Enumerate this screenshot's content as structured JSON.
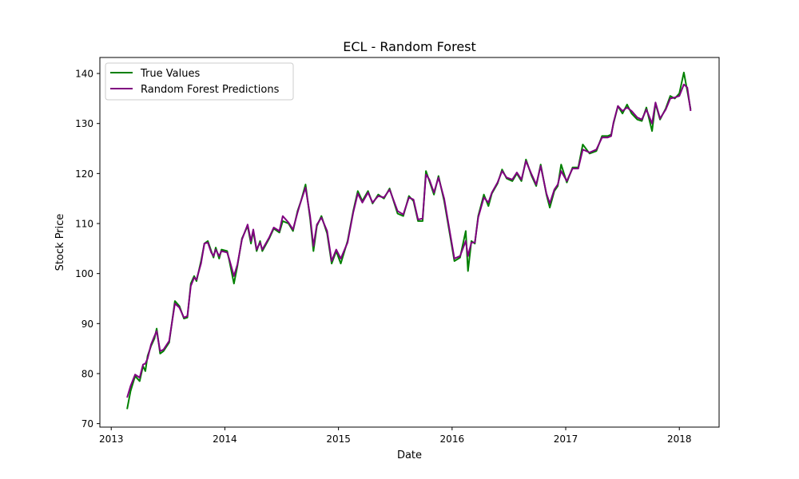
{
  "chart_data": {
    "type": "line",
    "title": "ECL - Random Forest",
    "xlabel": "Date",
    "ylabel": "Stock Price",
    "xlim": [
      2012.9,
      2018.35
    ],
    "ylim": [
      69.3,
      143.2
    ],
    "x_ticks": [
      2013,
      2014,
      2015,
      2016,
      2017,
      2018
    ],
    "x_tick_labels": [
      "2013",
      "2014",
      "2015",
      "2016",
      "2017",
      "2018"
    ],
    "y_ticks": [
      70,
      80,
      90,
      100,
      110,
      120,
      130,
      140
    ],
    "y_tick_labels": [
      "70",
      "80",
      "90",
      "100",
      "110",
      "120",
      "130",
      "140"
    ],
    "grid": false,
    "legend_position": "top-left",
    "series": [
      {
        "name": "True Values",
        "color": "#008000",
        "points": [
          [
            2013.14,
            72.9
          ],
          [
            2013.17,
            76.5
          ],
          [
            2013.21,
            79.5
          ],
          [
            2013.25,
            78.5
          ],
          [
            2013.28,
            81.5
          ],
          [
            2013.3,
            80.5
          ],
          [
            2013.32,
            83.5
          ],
          [
            2013.35,
            85.5
          ],
          [
            2013.38,
            87.0
          ],
          [
            2013.4,
            89.0
          ],
          [
            2013.43,
            84.0
          ],
          [
            2013.46,
            84.5
          ],
          [
            2013.51,
            86.2
          ],
          [
            2013.56,
            94.5
          ],
          [
            2013.6,
            93.5
          ],
          [
            2013.64,
            91.0
          ],
          [
            2013.67,
            91.2
          ],
          [
            2013.7,
            98.0
          ],
          [
            2013.73,
            99.5
          ],
          [
            2013.75,
            98.5
          ],
          [
            2013.79,
            102.5
          ],
          [
            2013.82,
            106.0
          ],
          [
            2013.85,
            106.5
          ],
          [
            2013.88,
            104.5
          ],
          [
            2013.9,
            103.2
          ],
          [
            2013.92,
            105.2
          ],
          [
            2013.95,
            103.0
          ],
          [
            2013.97,
            104.8
          ],
          [
            2014.02,
            104.5
          ],
          [
            2014.04,
            102.5
          ],
          [
            2014.08,
            98.0
          ],
          [
            2014.11,
            101.5
          ],
          [
            2014.15,
            107.0
          ],
          [
            2014.2,
            109.5
          ],
          [
            2014.23,
            106.0
          ],
          [
            2014.25,
            108.5
          ],
          [
            2014.28,
            104.5
          ],
          [
            2014.31,
            106.5
          ],
          [
            2014.33,
            104.5
          ],
          [
            2014.39,
            107.0
          ],
          [
            2014.43,
            109.0
          ],
          [
            2014.48,
            108.2
          ],
          [
            2014.51,
            110.5
          ],
          [
            2014.56,
            110.0
          ],
          [
            2014.6,
            108.5
          ],
          [
            2014.64,
            112.5
          ],
          [
            2014.67,
            114.5
          ],
          [
            2014.71,
            117.8
          ],
          [
            2014.75,
            111.0
          ],
          [
            2014.78,
            104.5
          ],
          [
            2014.81,
            109.5
          ],
          [
            2014.85,
            111.5
          ],
          [
            2014.9,
            108.0
          ],
          [
            2014.94,
            102.0
          ],
          [
            2014.98,
            104.5
          ],
          [
            2015.02,
            102.0
          ],
          [
            2015.08,
            106.5
          ],
          [
            2015.13,
            112.5
          ],
          [
            2015.17,
            116.5
          ],
          [
            2015.21,
            114.5
          ],
          [
            2015.26,
            116.5
          ],
          [
            2015.3,
            114.0
          ],
          [
            2015.35,
            115.8
          ],
          [
            2015.4,
            115.0
          ],
          [
            2015.45,
            117.0
          ],
          [
            2015.52,
            112.0
          ],
          [
            2015.57,
            111.5
          ],
          [
            2015.62,
            115.5
          ],
          [
            2015.66,
            114.5
          ],
          [
            2015.7,
            110.5
          ],
          [
            2015.74,
            110.5
          ],
          [
            2015.77,
            120.5
          ],
          [
            2015.8,
            118.5
          ],
          [
            2015.84,
            115.8
          ],
          [
            2015.88,
            119.5
          ],
          [
            2015.93,
            114.5
          ],
          [
            2016.02,
            102.5
          ],
          [
            2016.07,
            103.2
          ],
          [
            2016.12,
            108.5
          ],
          [
            2016.14,
            100.5
          ],
          [
            2016.17,
            106.5
          ],
          [
            2016.2,
            106.0
          ],
          [
            2016.23,
            111.5
          ],
          [
            2016.28,
            115.8
          ],
          [
            2016.32,
            113.5
          ],
          [
            2016.35,
            116.0
          ],
          [
            2016.4,
            118.0
          ],
          [
            2016.44,
            120.8
          ],
          [
            2016.48,
            119.0
          ],
          [
            2016.53,
            118.5
          ],
          [
            2016.57,
            120.0
          ],
          [
            2016.61,
            118.5
          ],
          [
            2016.65,
            122.8
          ],
          [
            2016.7,
            119.5
          ],
          [
            2016.74,
            117.5
          ],
          [
            2016.78,
            121.8
          ],
          [
            2016.83,
            115.8
          ],
          [
            2016.86,
            113.2
          ],
          [
            2016.9,
            116.5
          ],
          [
            2016.93,
            117.5
          ],
          [
            2016.96,
            121.8
          ],
          [
            2017.01,
            118.2
          ],
          [
            2017.06,
            121.2
          ],
          [
            2017.11,
            121.2
          ],
          [
            2017.15,
            125.8
          ],
          [
            2017.21,
            124.0
          ],
          [
            2017.27,
            124.5
          ],
          [
            2017.32,
            127.5
          ],
          [
            2017.37,
            127.5
          ],
          [
            2017.4,
            127.8
          ],
          [
            2017.42,
            130.0
          ],
          [
            2017.46,
            133.5
          ],
          [
            2017.5,
            132.0
          ],
          [
            2017.54,
            133.8
          ],
          [
            2017.58,
            132.0
          ],
          [
            2017.63,
            130.8
          ],
          [
            2017.67,
            130.5
          ],
          [
            2017.71,
            133.2
          ],
          [
            2017.76,
            128.5
          ],
          [
            2017.79,
            134.0
          ],
          [
            2017.83,
            130.8
          ],
          [
            2017.88,
            133.0
          ],
          [
            2017.92,
            135.5
          ],
          [
            2017.96,
            135.0
          ],
          [
            2018.0,
            136.0
          ],
          [
            2018.04,
            140.2
          ],
          [
            2018.07,
            136.5
          ],
          [
            2018.1,
            132.8
          ]
        ]
      },
      {
        "name": "Random Forest Predictions",
        "color": "#800080",
        "points": [
          [
            2013.14,
            75.2
          ],
          [
            2013.17,
            77.5
          ],
          [
            2013.21,
            79.8
          ],
          [
            2013.25,
            79.2
          ],
          [
            2013.28,
            81.8
          ],
          [
            2013.3,
            82.0
          ],
          [
            2013.32,
            83.0
          ],
          [
            2013.35,
            85.8
          ],
          [
            2013.38,
            87.5
          ],
          [
            2013.4,
            88.5
          ],
          [
            2013.43,
            84.5
          ],
          [
            2013.46,
            84.8
          ],
          [
            2013.51,
            86.5
          ],
          [
            2013.56,
            94.0
          ],
          [
            2013.6,
            93.2
          ],
          [
            2013.64,
            91.2
          ],
          [
            2013.67,
            91.5
          ],
          [
            2013.7,
            97.5
          ],
          [
            2013.73,
            99.2
          ],
          [
            2013.75,
            98.8
          ],
          [
            2013.79,
            102.0
          ],
          [
            2013.82,
            106.0
          ],
          [
            2013.85,
            106.2
          ],
          [
            2013.88,
            104.2
          ],
          [
            2013.9,
            103.5
          ],
          [
            2013.92,
            104.8
          ],
          [
            2013.95,
            103.5
          ],
          [
            2013.97,
            104.5
          ],
          [
            2014.02,
            104.2
          ],
          [
            2014.04,
            102.8
          ],
          [
            2014.08,
            99.5
          ],
          [
            2014.11,
            101.8
          ],
          [
            2014.15,
            106.8
          ],
          [
            2014.2,
            109.8
          ],
          [
            2014.23,
            106.5
          ],
          [
            2014.25,
            108.8
          ],
          [
            2014.28,
            104.8
          ],
          [
            2014.31,
            106.2
          ],
          [
            2014.33,
            104.8
          ],
          [
            2014.39,
            107.2
          ],
          [
            2014.43,
            109.2
          ],
          [
            2014.48,
            108.5
          ],
          [
            2014.51,
            111.5
          ],
          [
            2014.56,
            110.2
          ],
          [
            2014.6,
            108.8
          ],
          [
            2014.64,
            112.2
          ],
          [
            2014.67,
            114.5
          ],
          [
            2014.71,
            117.2
          ],
          [
            2014.75,
            111.5
          ],
          [
            2014.78,
            105.5
          ],
          [
            2014.81,
            109.8
          ],
          [
            2014.85,
            111.2
          ],
          [
            2014.9,
            108.5
          ],
          [
            2014.94,
            102.5
          ],
          [
            2014.98,
            104.8
          ],
          [
            2015.02,
            103.0
          ],
          [
            2015.08,
            106.2
          ],
          [
            2015.13,
            112.2
          ],
          [
            2015.17,
            116.0
          ],
          [
            2015.21,
            114.2
          ],
          [
            2015.26,
            116.2
          ],
          [
            2015.3,
            114.2
          ],
          [
            2015.35,
            115.5
          ],
          [
            2015.4,
            115.2
          ],
          [
            2015.45,
            116.8
          ],
          [
            2015.52,
            112.5
          ],
          [
            2015.57,
            111.8
          ],
          [
            2015.62,
            115.2
          ],
          [
            2015.66,
            114.8
          ],
          [
            2015.7,
            110.8
          ],
          [
            2015.74,
            111.0
          ],
          [
            2015.77,
            119.8
          ],
          [
            2015.8,
            118.8
          ],
          [
            2015.84,
            116.2
          ],
          [
            2015.88,
            119.2
          ],
          [
            2015.93,
            115.0
          ],
          [
            2016.02,
            103.0
          ],
          [
            2016.07,
            103.5
          ],
          [
            2016.12,
            106.5
          ],
          [
            2016.14,
            103.5
          ],
          [
            2016.17,
            106.2
          ],
          [
            2016.2,
            106.2
          ],
          [
            2016.23,
            111.2
          ],
          [
            2016.28,
            115.2
          ],
          [
            2016.32,
            114.2
          ],
          [
            2016.35,
            116.2
          ],
          [
            2016.4,
            118.2
          ],
          [
            2016.44,
            120.5
          ],
          [
            2016.48,
            119.2
          ],
          [
            2016.53,
            118.8
          ],
          [
            2016.57,
            120.2
          ],
          [
            2016.61,
            118.8
          ],
          [
            2016.65,
            122.5
          ],
          [
            2016.7,
            119.8
          ],
          [
            2016.74,
            117.8
          ],
          [
            2016.78,
            121.5
          ],
          [
            2016.83,
            116.0
          ],
          [
            2016.86,
            114.0
          ],
          [
            2016.9,
            116.8
          ],
          [
            2016.93,
            117.8
          ],
          [
            2016.96,
            120.5
          ],
          [
            2017.01,
            118.5
          ],
          [
            2017.06,
            121.0
          ],
          [
            2017.11,
            121.0
          ],
          [
            2017.15,
            124.8
          ],
          [
            2017.21,
            124.2
          ],
          [
            2017.27,
            124.8
          ],
          [
            2017.32,
            127.2
          ],
          [
            2017.37,
            127.2
          ],
          [
            2017.4,
            127.5
          ],
          [
            2017.42,
            130.2
          ],
          [
            2017.46,
            133.5
          ],
          [
            2017.5,
            132.5
          ],
          [
            2017.54,
            133.2
          ],
          [
            2017.58,
            132.5
          ],
          [
            2017.63,
            131.2
          ],
          [
            2017.67,
            130.8
          ],
          [
            2017.71,
            132.8
          ],
          [
            2017.76,
            130.0
          ],
          [
            2017.79,
            134.2
          ],
          [
            2017.83,
            131.0
          ],
          [
            2017.88,
            132.8
          ],
          [
            2017.92,
            135.0
          ],
          [
            2017.96,
            135.2
          ],
          [
            2018.0,
            135.5
          ],
          [
            2018.04,
            137.8
          ],
          [
            2018.07,
            137.2
          ],
          [
            2018.1,
            132.5
          ]
        ]
      }
    ]
  }
}
